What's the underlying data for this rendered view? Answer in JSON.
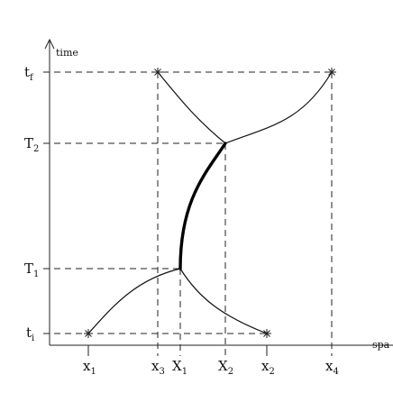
{
  "axes": {
    "vertical_label": "time",
    "horizontal_label": "spa"
  },
  "time_labels": [
    {
      "id": "tf",
      "main": "t",
      "sub": "f"
    },
    {
      "id": "T2",
      "main": "T",
      "sub": "2"
    },
    {
      "id": "T1",
      "main": "T",
      "sub": "1"
    },
    {
      "id": "ti",
      "main": "t",
      "sub": "i"
    }
  ],
  "space_labels": [
    {
      "id": "x1",
      "main": "x",
      "sub": "1"
    },
    {
      "id": "x3",
      "main": "x",
      "sub": "3"
    },
    {
      "id": "X1",
      "main": "X",
      "sub": "1"
    },
    {
      "id": "X2",
      "main": "X",
      "sub": "2"
    },
    {
      "id": "x2",
      "main": "x",
      "sub": "2"
    },
    {
      "id": "x4",
      "main": "x",
      "sub": "4"
    }
  ]
}
